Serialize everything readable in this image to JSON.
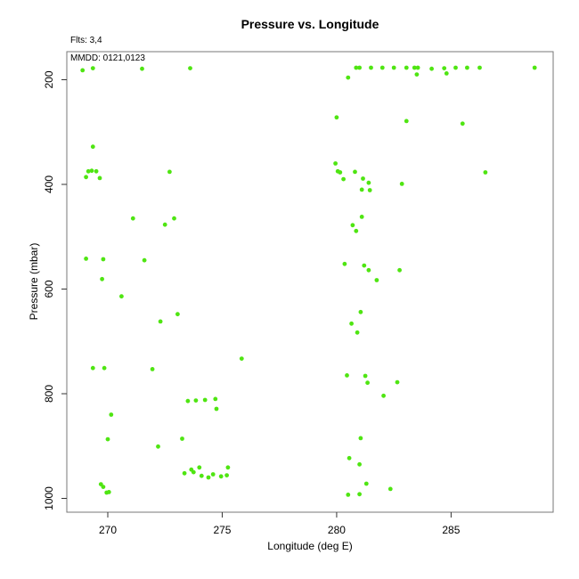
{
  "figure": {
    "annotations": {
      "flights": "Flts: 3,4",
      "mmdd": "MMDD: 0121,0123"
    }
  },
  "chart_data": {
    "type": "scatter",
    "title": "Pressure vs. Longitude",
    "xlabel": "Longitude (deg E)",
    "ylabel": "Pressure (mbar)",
    "xlim": [
      268.21,
      289.46
    ],
    "ylim_top_to_bottom": [
      146.4,
      1026.4
    ],
    "y_axis_reversed": true,
    "xticks": [
      270,
      275,
      280,
      285
    ],
    "yticks": [
      200,
      400,
      600,
      800,
      1000
    ],
    "grid": false,
    "legend": false,
    "marker_color": "#4FE512",
    "axis_color": "#333333",
    "box_color": "#777777",
    "series": [
      {
        "name": "flights-3-4",
        "points": [
          [
            268.9,
            182
          ],
          [
            269.35,
            178
          ],
          [
            271.5,
            179
          ],
          [
            273.6,
            178
          ],
          [
            280.85,
            177
          ],
          [
            281.0,
            177
          ],
          [
            281.5,
            177
          ],
          [
            282.0,
            177
          ],
          [
            282.5,
            177
          ],
          [
            283.05,
            177
          ],
          [
            283.4,
            177
          ],
          [
            283.55,
            177
          ],
          [
            284.15,
            179
          ],
          [
            284.7,
            178
          ],
          [
            285.2,
            177
          ],
          [
            285.7,
            177
          ],
          [
            286.25,
            177
          ],
          [
            288.65,
            177
          ],
          [
            280.5,
            196
          ],
          [
            283.5,
            190
          ],
          [
            284.8,
            188
          ],
          [
            280.0,
            272
          ],
          [
            283.05,
            279
          ],
          [
            285.5,
            284
          ],
          [
            269.35,
            328
          ],
          [
            279.95,
            360
          ],
          [
            269.15,
            375
          ],
          [
            269.3,
            374
          ],
          [
            269.5,
            375
          ],
          [
            269.05,
            386
          ],
          [
            269.65,
            388
          ],
          [
            272.7,
            376
          ],
          [
            280.05,
            375
          ],
          [
            280.15,
            377
          ],
          [
            280.3,
            390
          ],
          [
            280.8,
            376
          ],
          [
            281.15,
            389
          ],
          [
            281.4,
            397
          ],
          [
            281.1,
            410
          ],
          [
            281.45,
            411
          ],
          [
            282.85,
            399
          ],
          [
            286.5,
            377
          ],
          [
            271.1,
            465
          ],
          [
            272.5,
            477
          ],
          [
            272.9,
            465
          ],
          [
            281.1,
            462
          ],
          [
            280.7,
            478
          ],
          [
            280.85,
            489
          ],
          [
            269.05,
            542
          ],
          [
            269.8,
            543
          ],
          [
            271.6,
            545
          ],
          [
            269.75,
            581
          ],
          [
            280.35,
            552
          ],
          [
            281.2,
            555
          ],
          [
            281.4,
            564
          ],
          [
            282.75,
            564
          ],
          [
            281.75,
            583
          ],
          [
            270.6,
            614
          ],
          [
            272.3,
            662
          ],
          [
            273.05,
            648
          ],
          [
            281.05,
            644
          ],
          [
            280.65,
            666
          ],
          [
            280.9,
            683
          ],
          [
            275.85,
            733
          ],
          [
            269.35,
            751
          ],
          [
            269.85,
            751
          ],
          [
            271.95,
            753
          ],
          [
            280.45,
            765
          ],
          [
            281.25,
            766
          ],
          [
            281.35,
            779
          ],
          [
            282.65,
            778
          ],
          [
            282.05,
            804
          ],
          [
            273.5,
            814
          ],
          [
            273.85,
            813
          ],
          [
            274.25,
            812
          ],
          [
            274.7,
            810
          ],
          [
            274.75,
            829
          ],
          [
            270.15,
            840
          ],
          [
            270.0,
            887
          ],
          [
            272.2,
            901
          ],
          [
            273.25,
            886
          ],
          [
            281.05,
            885
          ],
          [
            280.55,
            923
          ],
          [
            281.0,
            935
          ],
          [
            273.35,
            952
          ],
          [
            273.65,
            945
          ],
          [
            273.75,
            950
          ],
          [
            274.0,
            941
          ],
          [
            274.1,
            957
          ],
          [
            274.4,
            960
          ],
          [
            274.6,
            954
          ],
          [
            274.95,
            958
          ],
          [
            275.2,
            956
          ],
          [
            275.25,
            941
          ],
          [
            269.7,
            973
          ],
          [
            269.8,
            978
          ],
          [
            269.95,
            989
          ],
          [
            270.05,
            988
          ],
          [
            281.3,
            972
          ],
          [
            282.35,
            982
          ],
          [
            280.5,
            993
          ],
          [
            281.0,
            992
          ]
        ]
      }
    ]
  }
}
